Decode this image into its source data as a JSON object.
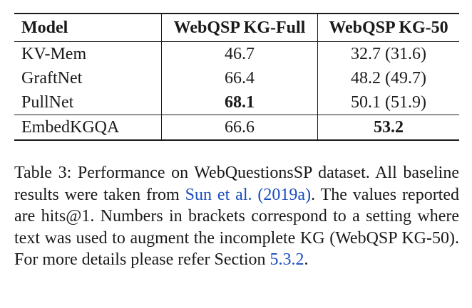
{
  "table": {
    "headers": [
      "Model",
      "WebQSP KG-Full",
      "WebQSP KG-50"
    ],
    "rows": [
      {
        "model": "KV-Mem",
        "full": "46.7",
        "kg50": "32.7 (31.6)"
      },
      {
        "model": "GraftNet",
        "full": "66.4",
        "kg50": "48.2 (49.7)"
      },
      {
        "model": "PullNet",
        "full": "68.1",
        "kg50": "50.1 (51.9)"
      },
      {
        "model": "EmbedKGQA",
        "full": "66.6",
        "kg50": "53.2"
      }
    ]
  },
  "caption": {
    "text_1": "Table 3: Performance on WebQuestionsSP dataset. All baseline results were taken from ",
    "cite_1": "Sun et al. (2019a)",
    "text_2": ". The values reported are hits@1. Numbers in brackets correspond to a setting where text was used to augment the incomplete KG (WebQSP KG-50). For more details please refer Section ",
    "cite_2": "5.3.2",
    "text_3": "."
  },
  "colors": {
    "text": "#1a1a1a",
    "link": "#1a4dbf"
  }
}
